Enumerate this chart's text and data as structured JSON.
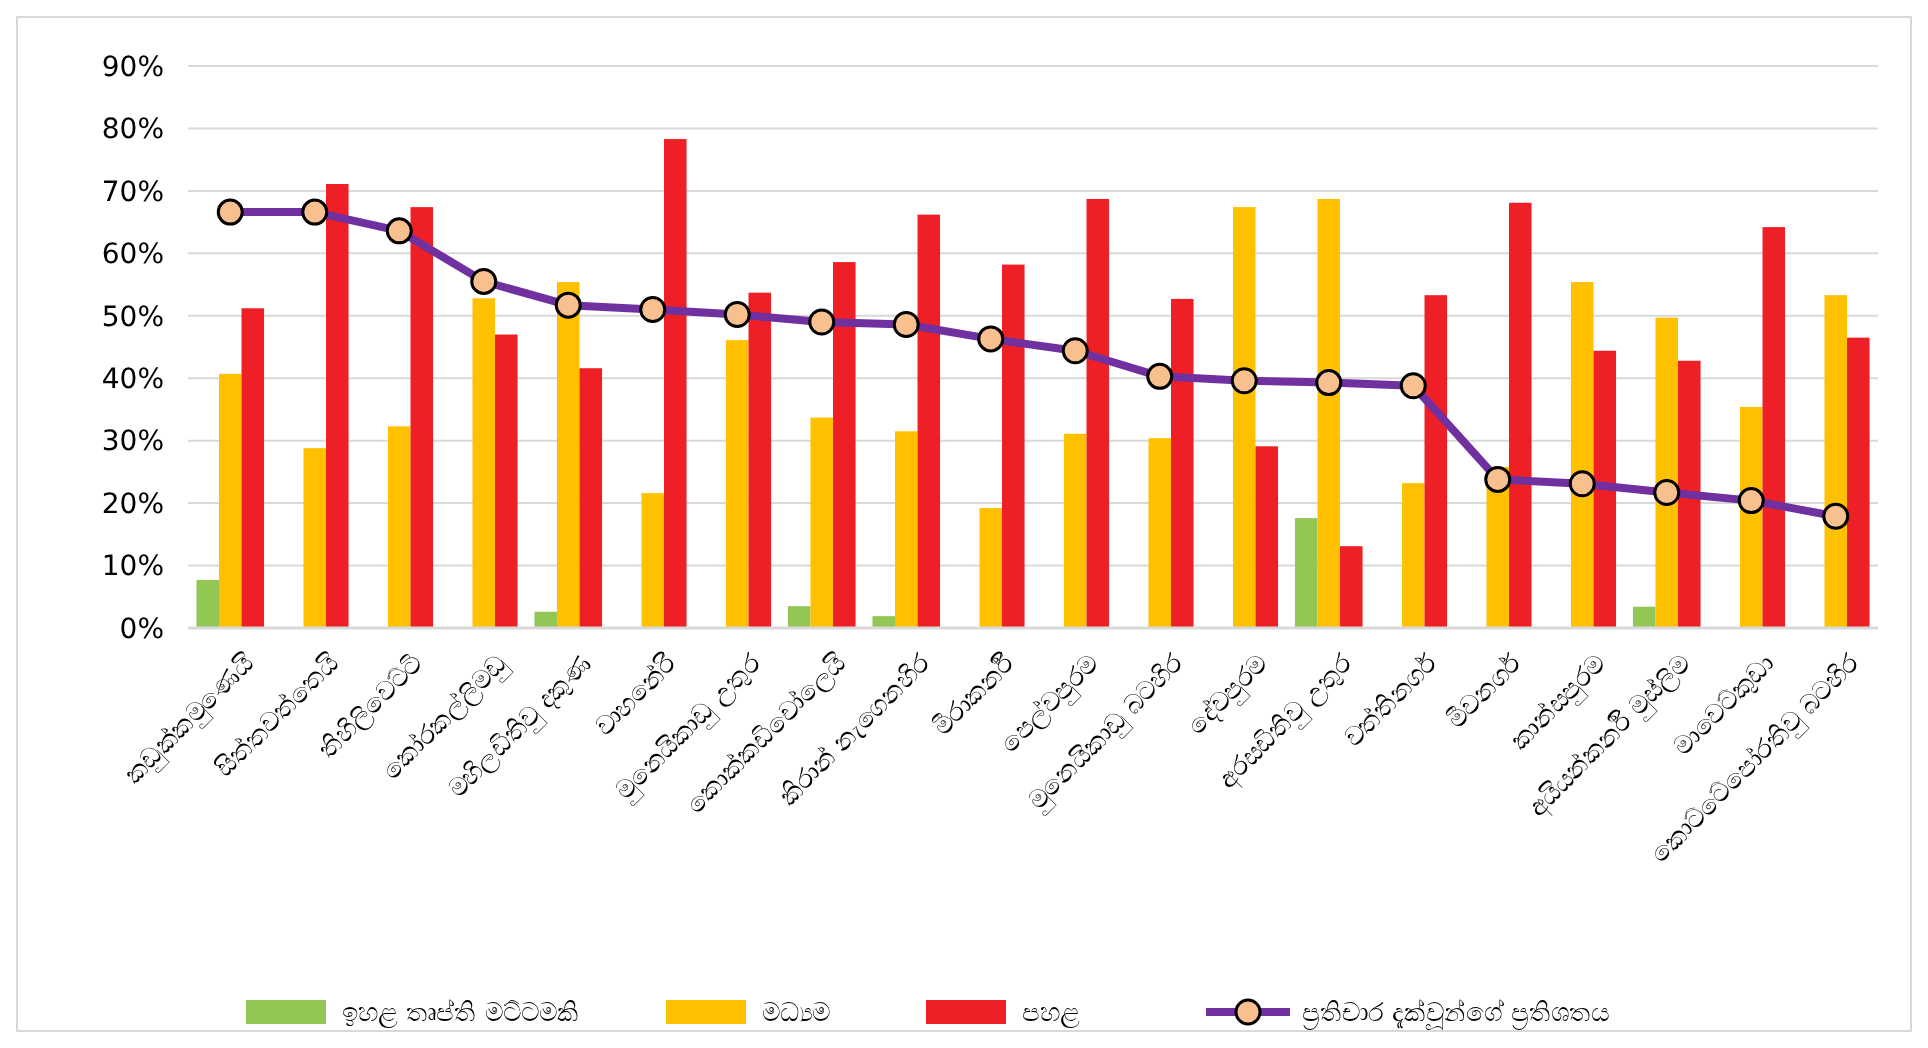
{
  "chart_data": {
    "type": "bar",
    "categories": [
      "කඩුක්කමුණෙයි",
      "සිත්තවත්තෙයි",
      "තිහිලිවෙට්ටි",
      "කෝරකල්ලිමඩු",
      "මහිලඩිතිවු දකුණ",
      "වාහනේරි",
      "මුනෙයිකාඩු උතුර",
      "කොක්කඩිචෝලෙයි",
      "කිරාන් නැගෙනහිර",
      "මීරාකර්නි",
      "පෙල්වපුරම",
      "මුනෙයිකාඩු බටහිර",
      "දේවපුරම",
      "අරසඩිතිවු උතුර",
      "වත්තිනගර්",
      "මීවනගර්",
      "කාන්සපුරම",
      "අයියන්කර්නි මුස්ලිම",
      "මාවෙට්කුඩා",
      "කොට්ටේපෝරතිවු බටහිර"
    ],
    "series": [
      {
        "name": "ඉහළ තෘප්ති මට්ටමකි",
        "color": "#92c755",
        "values": [
          7.7,
          null,
          null,
          null,
          2.6,
          null,
          null,
          3.5,
          1.9,
          null,
          null,
          null,
          null,
          17.6,
          null,
          null,
          null,
          3.4,
          null,
          null
        ]
      },
      {
        "name": "මධ්‍යම",
        "color": "#ffc000",
        "values": [
          40.7,
          28.8,
          32.3,
          52.8,
          55.4,
          21.6,
          46.1,
          33.7,
          31.5,
          19.2,
          31.1,
          30.4,
          67.4,
          68.7,
          23.2,
          25.8,
          55.4,
          49.7,
          35.4,
          53.3
        ]
      },
      {
        "name": "පහළ",
        "color": "#ee2026",
        "values": [
          51.2,
          71.1,
          67.4,
          47.0,
          41.6,
          78.3,
          53.7,
          58.6,
          66.2,
          58.2,
          68.7,
          52.7,
          29.1,
          13.1,
          53.3,
          68.1,
          44.4,
          42.8,
          64.2,
          46.5
        ]
      },
      {
        "name": "ප්‍රතිචාර දැක්වූන්ගේ ප්‍රතිශතය",
        "type": "line",
        "color": "#7030a0",
        "marker": "circle",
        "values": [
          66.6,
          66.6,
          63.6,
          55.5,
          51.7,
          51.0,
          50.2,
          49.0,
          48.6,
          46.3,
          44.4,
          40.3,
          39.6,
          39.3,
          38.8,
          23.8,
          23.1,
          21.7,
          20.4,
          17.9
        ]
      }
    ],
    "ylim": [
      0,
      90
    ],
    "yticks": [
      {
        "value": 0,
        "label": "0%"
      },
      {
        "value": 10,
        "label": "10%"
      },
      {
        "value": 20,
        "label": "20%"
      },
      {
        "value": 30,
        "label": "30%"
      },
      {
        "value": 40,
        "label": "40%"
      },
      {
        "value": 50,
        "label": "50%"
      },
      {
        "value": 60,
        "label": "60%"
      },
      {
        "value": 70,
        "label": "70%"
      },
      {
        "value": 80,
        "label": "80%"
      },
      {
        "value": 90,
        "label": "90%"
      }
    ],
    "grid": "y",
    "legend": "bottom"
  }
}
